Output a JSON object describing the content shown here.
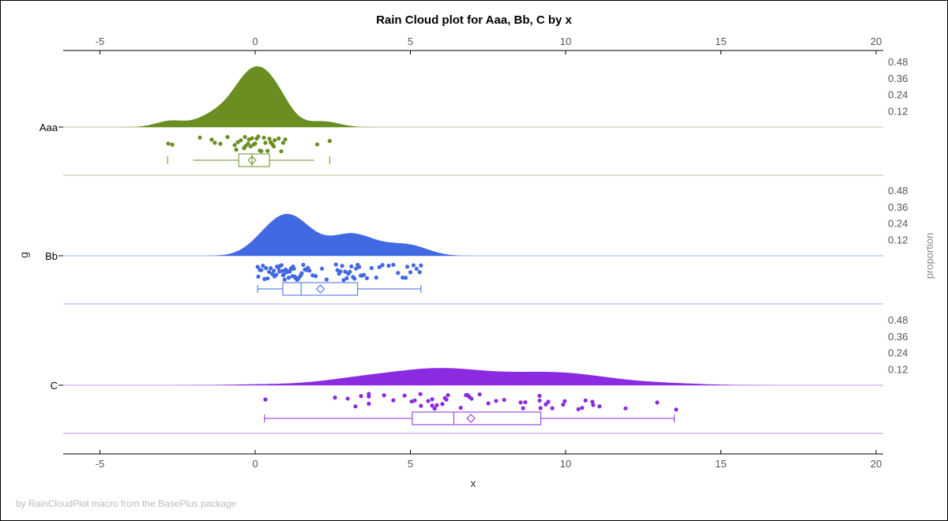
{
  "chart_data": {
    "type": "raincloud",
    "title": "Rain Cloud plot for Aaa, Bb, C by x",
    "xlabel": "x",
    "ylabel": "g",
    "y2label": "proportion",
    "footnote": "by RainCloudPlot macro from the BasePlus package",
    "xlim": [
      -6.1,
      20.3
    ],
    "xticks": [
      "-5",
      "0",
      "5",
      "10",
      "15",
      "20"
    ],
    "xtick_values": [
      -5,
      0,
      5,
      10,
      15,
      20
    ],
    "density_ticks": [
      "0.12",
      "0.24",
      "0.36",
      "0.48"
    ],
    "density_tick_values": [
      0.12,
      0.24,
      0.36,
      0.48
    ],
    "grid": false,
    "groups": [
      {
        "name": "Aaa",
        "color": "#6B8E23",
        "box": {
          "whisker_low": -2.0,
          "q1": -0.53,
          "median": -0.1,
          "q3": 0.46,
          "whisker_high": 1.9,
          "mean": -0.1,
          "min": -2.82,
          "max": 2.4
        },
        "points": [
          -2.8,
          -2.67,
          -1.78,
          -1.4,
          -1.3,
          -1.12,
          -0.89,
          -0.61,
          -0.66,
          -0.56,
          -0.46,
          -0.36,
          -0.31,
          -0.33,
          -0.23,
          -0.2,
          -0.15,
          -0.1,
          -0.05,
          0,
          0.05,
          0.1,
          0.15,
          0.2,
          0.28,
          0.33,
          0.4,
          0.46,
          0.5,
          0.56,
          0.6,
          0.63,
          0.76,
          0.84,
          0.9,
          0.97,
          2.0,
          2.4
        ]
      },
      {
        "name": "Bb",
        "color": "#4169E1",
        "box": {
          "whisker_low": 0.08,
          "q1": 0.89,
          "median": 1.48,
          "q3": 3.3,
          "whisker_high": 5.34,
          "mean": 2.1
        },
        "points": [
          0.08,
          0.1,
          0.15,
          0.2,
          0.25,
          0.3,
          0.35,
          0.4,
          0.45,
          0.5,
          0.55,
          0.6,
          0.62,
          0.68,
          0.7,
          0.75,
          0.78,
          0.8,
          0.85,
          0.88,
          0.9,
          0.92,
          0.95,
          0.98,
          1.0,
          1.02,
          1.05,
          1.08,
          1.1,
          1.12,
          1.15,
          1.18,
          1.2,
          1.22,
          1.25,
          1.28,
          1.3,
          1.35,
          1.38,
          1.4,
          1.45,
          1.48,
          1.5,
          1.55,
          1.6,
          1.65,
          1.7,
          1.75,
          1.85,
          1.95,
          2.15,
          2.3,
          2.6,
          2.65,
          2.7,
          2.75,
          2.8,
          2.85,
          2.9,
          2.95,
          3.0,
          3.05,
          3.1,
          3.15,
          3.2,
          3.25,
          3.3,
          3.35,
          3.4,
          3.45,
          3.5,
          3.6,
          3.75,
          3.9,
          4.0,
          4.1,
          4.3,
          4.45,
          4.6,
          4.75,
          4.85,
          4.9,
          5.0,
          5.1,
          5.2,
          5.3,
          5.34
        ]
      },
      {
        "name": "C",
        "color": "#8A2BE2",
        "box": {
          "whisker_low": 0.3,
          "q1": 5.06,
          "median": 6.4,
          "q3": 9.2,
          "whisker_high": 13.5,
          "mean": 6.95
        },
        "points": [
          0.33,
          2.57,
          2.98,
          3.23,
          3.41,
          3.66,
          3.66,
          3.66,
          4.15,
          4.45,
          4.81,
          5.04,
          5.14,
          5.32,
          5.34,
          5.57,
          5.7,
          5.7,
          5.78,
          5.85,
          6.03,
          6.11,
          6.16,
          6.21,
          6.62,
          6.79,
          6.84,
          6.9,
          6.97,
          7.23,
          7.51,
          7.76,
          8.02,
          8.55,
          8.63,
          8.7,
          9.16,
          9.16,
          9.19,
          9.36,
          9.44,
          9.57,
          9.92,
          9.97,
          10.41,
          10.53,
          10.64,
          10.86,
          10.89,
          11.09,
          11.93,
          12.95,
          13.56
        ]
      }
    ]
  }
}
